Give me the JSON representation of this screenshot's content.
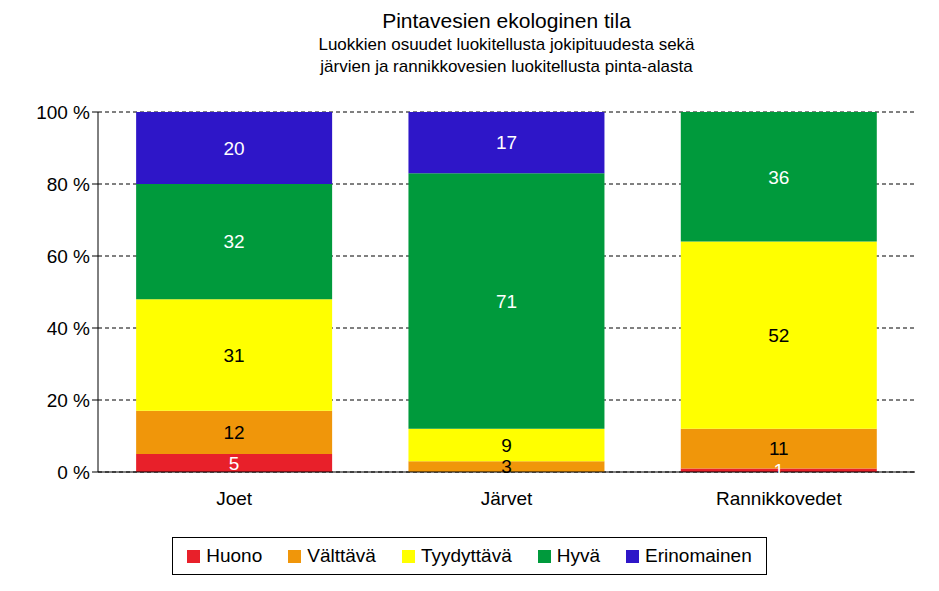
{
  "chart_data": {
    "type": "bar",
    "title": "Pintavesien ekologinen tila",
    "subtitle": [
      "Luokkien osuudet luokitellusta jokipituudesta sekä",
      "järvien ja rannikkovesien luokitellusta pinta-alasta"
    ],
    "categories": [
      "Joet",
      "Järvet",
      "Rannikkovedet"
    ],
    "series": [
      {
        "name": "Huono",
        "color": "#e8202a",
        "values": [
          5,
          null,
          1
        ]
      },
      {
        "name": "Välttävä",
        "color": "#f0960a",
        "values": [
          12,
          3,
          11
        ]
      },
      {
        "name": "Tyydyttävä",
        "color": "#ffff00",
        "values": [
          31,
          9,
          52
        ]
      },
      {
        "name": "Hyvä",
        "color": "#009a3c",
        "values": [
          32,
          71,
          36
        ]
      },
      {
        "name": "Erinomainen",
        "color": "#2e16c8",
        "values": [
          20,
          17,
          null
        ]
      }
    ],
    "stacked": true,
    "data_labels": true,
    "ylim": [
      0,
      100
    ],
    "yticks": [
      {
        "value": 0,
        "label": "0 %"
      },
      {
        "value": 20,
        "label": "20 %"
      },
      {
        "value": 40,
        "label": "40 %"
      },
      {
        "value": 60,
        "label": "60 %"
      },
      {
        "value": 80,
        "label": "80 %"
      },
      {
        "value": 100,
        "label": "100 %"
      }
    ],
    "grid": true,
    "legend": "bottom"
  }
}
